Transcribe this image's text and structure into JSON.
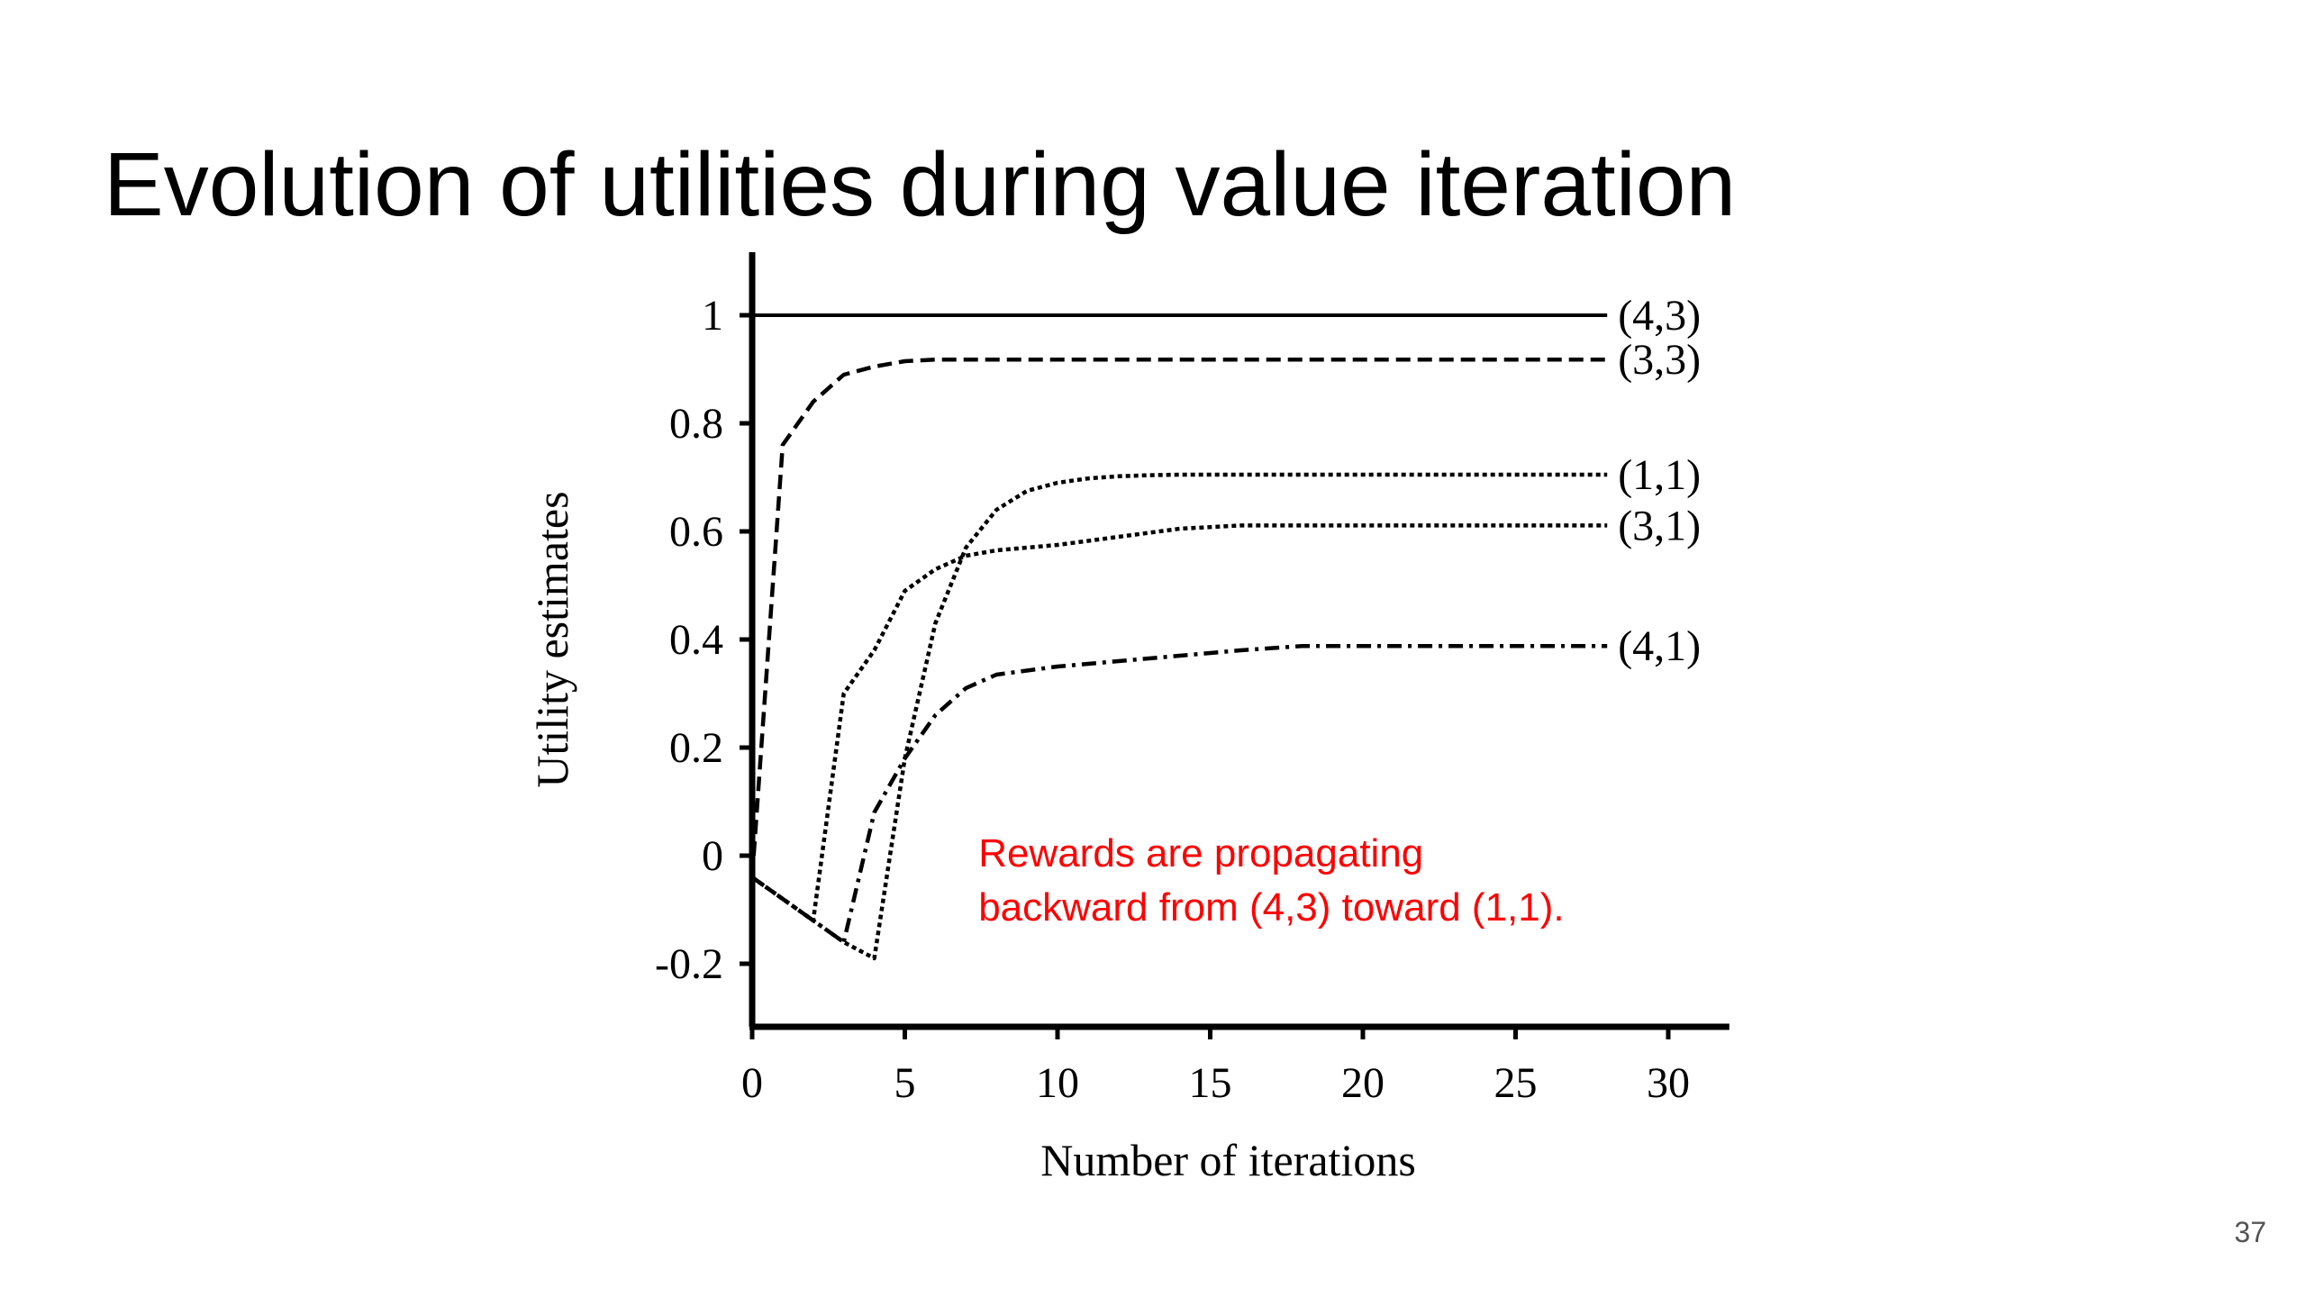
{
  "slide": {
    "title": "Evolution of utilities during value iteration",
    "page_number": "37"
  },
  "chart_data": {
    "type": "line",
    "title": "",
    "xlabel": "Number of iterations",
    "ylabel": "Utility estimates",
    "xlim": [
      0,
      32
    ],
    "ylim": [
      -0.3,
      1.1
    ],
    "xticks": [
      0,
      5,
      10,
      15,
      20,
      25,
      30
    ],
    "xtick_labels": [
      "0",
      "5",
      "10",
      "15",
      "20",
      "25",
      "30"
    ],
    "yticks": [
      -0.2,
      0,
      0.2,
      0.4,
      0.6,
      0.8,
      1
    ],
    "ytick_labels": [
      "-0.2",
      "0",
      "0.2",
      "0.4",
      "0.6",
      "0.8",
      "1"
    ],
    "grid": false,
    "legend": "labels at right end of each line",
    "series": [
      {
        "name": "(4,3)",
        "style": "solid",
        "color": "#000000",
        "x": [
          0,
          28
        ],
        "y": [
          1,
          1
        ]
      },
      {
        "name": "(3,3)",
        "style": "dashed",
        "color": "#000000",
        "x": [
          0,
          1,
          2,
          3,
          4,
          5,
          6,
          28
        ],
        "y": [
          -0.04,
          0.76,
          0.84,
          0.89,
          0.905,
          0.915,
          0.918,
          0.918
        ]
      },
      {
        "name": "(1,1)",
        "style": "dotted",
        "color": "#000000",
        "x": [
          0,
          1,
          2,
          3,
          4,
          5,
          6,
          7,
          8,
          9,
          10,
          11,
          12,
          13,
          14,
          28
        ],
        "y": [
          -0.04,
          -0.08,
          -0.12,
          -0.16,
          -0.19,
          0.18,
          0.43,
          0.57,
          0.64,
          0.675,
          0.69,
          0.698,
          0.702,
          0.704,
          0.705,
          0.705
        ]
      },
      {
        "name": "(3,1)",
        "style": "dotted",
        "color": "#000000",
        "x": [
          0,
          1,
          2,
          3,
          4,
          5,
          6,
          7,
          8,
          10,
          12,
          14,
          16,
          18,
          28
        ],
        "y": [
          -0.04,
          -0.08,
          -0.12,
          0.3,
          0.38,
          0.49,
          0.53,
          0.555,
          0.565,
          0.575,
          0.59,
          0.605,
          0.611,
          0.611,
          0.611
        ]
      },
      {
        "name": "(4,1)",
        "style": "dash-dot",
        "color": "#000000",
        "x": [
          0,
          1,
          2,
          3,
          4,
          5,
          6,
          7,
          8,
          10,
          12,
          14,
          16,
          18,
          28
        ],
        "y": [
          -0.04,
          -0.08,
          -0.12,
          -0.16,
          0.08,
          0.18,
          0.26,
          0.31,
          0.335,
          0.35,
          0.36,
          0.37,
          0.38,
          0.388,
          0.388
        ]
      }
    ],
    "annotation": {
      "lines": [
        "Rewards are propagating",
        "backward from (4,3) toward (1,1)."
      ],
      "color": "#ff0000",
      "x": 8,
      "y": 0
    }
  }
}
